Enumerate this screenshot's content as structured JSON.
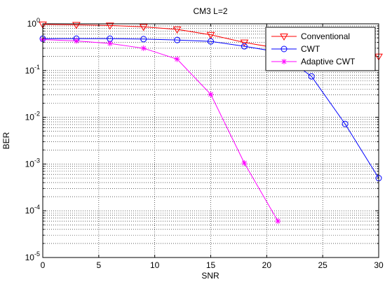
{
  "chart_data": {
    "type": "line",
    "title": "CM3 L=2",
    "xlabel": "SNR",
    "ylabel": "BER",
    "xlim": [
      0,
      30
    ],
    "ylim": [
      1e-05,
      1
    ],
    "yscale": "log",
    "xticks": [
      "0",
      "5",
      "10",
      "15",
      "20",
      "25",
      "30"
    ],
    "yticks": [
      {
        "base": "10",
        "exp": "0"
      },
      {
        "base": "10",
        "exp": "-1"
      },
      {
        "base": "10",
        "exp": "-2"
      },
      {
        "base": "10",
        "exp": "-3"
      },
      {
        "base": "10",
        "exp": "-4"
      },
      {
        "base": "10",
        "exp": "-5"
      }
    ],
    "grid": true,
    "legend_position": "top-right",
    "series": [
      {
        "name": "Conventional",
        "color": "#ff0000",
        "marker": "triangle-down",
        "x": [
          0,
          3,
          6,
          9,
          12,
          15,
          18,
          21,
          24,
          27,
          30
        ],
        "y": [
          0.97,
          0.95,
          0.92,
          0.86,
          0.76,
          0.58,
          0.4,
          0.3,
          0.27,
          0.25,
          0.2
        ]
      },
      {
        "name": "CWT",
        "color": "#0000ff",
        "marker": "circle",
        "x": [
          0,
          3,
          6,
          9,
          12,
          15,
          18,
          21,
          24,
          27,
          30
        ],
        "y": [
          0.48,
          0.48,
          0.48,
          0.47,
          0.45,
          0.42,
          0.33,
          0.25,
          0.075,
          0.0072,
          0.0005
        ]
      },
      {
        "name": "Adaptive CWT",
        "color": "#ff00ff",
        "marker": "star",
        "x": [
          0,
          3,
          6,
          9,
          12,
          15,
          18,
          21
        ],
        "y": [
          0.46,
          0.43,
          0.38,
          0.3,
          0.175,
          0.031,
          0.00105,
          6e-05
        ]
      }
    ]
  }
}
